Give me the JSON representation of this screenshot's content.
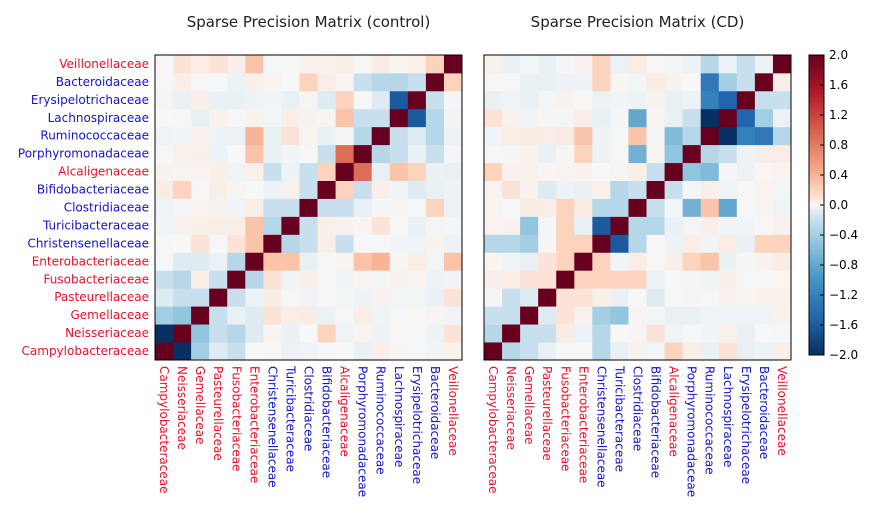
{
  "chart_data": [
    {
      "type": "heatmap",
      "title": "Sparse Precision Matrix (control)",
      "labels": [
        "Campylobacteraceae",
        "Neisseriaceae",
        "Gemellaceae",
        "Pasteurellaceae",
        "Fusobacteriaceae",
        "Enterobacteriaceae",
        "Christensenellaceae",
        "Turicibacteraceae",
        "Clostridiaceae",
        "Bifidobacteriaceae",
        "Alcaligenaceae",
        "Porphyromonadaceae",
        "Ruminococcaceae",
        "Lachnospiraceae",
        "Erysipelotrichaceae",
        "Bacteroidaceae",
        "Veillonellaceae"
      ],
      "label_colors": [
        "#e8102a",
        "#e8102a",
        "#e8102a",
        "#e8102a",
        "#e8102a",
        "#e8102a",
        "#1414c8",
        "#1414c8",
        "#1414c8",
        "#1414c8",
        "#e8102a",
        "#1414c8",
        "#1414c8",
        "#1414c8",
        "#1414c8",
        "#1414c8",
        "#e8102a"
      ],
      "row_order": "bottom-to-top",
      "diagonal": 2.0,
      "entries": [
        [
          0,
          1,
          -2.0
        ],
        [
          0,
          2,
          -0.4
        ],
        [
          0,
          3,
          -0.1
        ],
        [
          0,
          4,
          -0.2
        ],
        [
          1,
          2,
          -0.5
        ],
        [
          1,
          3,
          -0.2
        ],
        [
          1,
          4,
          -0.3
        ],
        [
          1,
          9,
          0.2
        ],
        [
          2,
          3,
          -0.2
        ],
        [
          2,
          5,
          -0.1
        ],
        [
          3,
          4,
          -0.2
        ],
        [
          4,
          5,
          -0.3
        ],
        [
          4,
          6,
          0.1
        ],
        [
          5,
          6,
          0.3
        ],
        [
          5,
          7,
          0.3
        ],
        [
          5,
          11,
          0.3
        ],
        [
          5,
          12,
          0.4
        ],
        [
          5,
          16,
          0.2
        ],
        [
          6,
          7,
          -0.3
        ],
        [
          6,
          8,
          -0.2
        ],
        [
          6,
          10,
          -0.2
        ],
        [
          7,
          8,
          -0.2
        ],
        [
          7,
          12,
          0.1
        ],
        [
          8,
          9,
          -0.2
        ],
        [
          8,
          10,
          -0.2
        ],
        [
          8,
          15,
          0.2
        ],
        [
          9,
          10,
          0.2
        ],
        [
          9,
          11,
          -0.2
        ],
        [
          10,
          11,
          0.9
        ],
        [
          10,
          13,
          0.3
        ],
        [
          10,
          14,
          0.2
        ],
        [
          11,
          12,
          -0.3
        ],
        [
          11,
          13,
          -0.2
        ],
        [
          11,
          15,
          -0.2
        ],
        [
          12,
          13,
          -0.2
        ],
        [
          12,
          15,
          -0.3
        ],
        [
          13,
          14,
          -1.6
        ],
        [
          13,
          15,
          -0.3
        ],
        [
          14,
          15,
          -0.2
        ],
        [
          15,
          16,
          0.2
        ],
        [
          16,
          1,
          0.1
        ],
        [
          16,
          5,
          0.3
        ],
        [
          16,
          3,
          0.1
        ],
        [
          12,
          14,
          -0.1
        ],
        [
          9,
          14,
          -0.1
        ],
        [
          2,
          6,
          0.1
        ],
        [
          1,
          5,
          -0.1
        ]
      ],
      "colorbar": {
        "min": -2.0,
        "max": 2.0,
        "ticks": [
          "2.0",
          "1.6",
          "1.2",
          "0.8",
          "0.4",
          "0.0",
          "−0.4",
          "−0.8",
          "−1.2",
          "−1.6",
          "−2.0"
        ]
      }
    },
    {
      "type": "heatmap",
      "title": "Sparse Precision Matrix (CD)",
      "labels": [
        "Campylobacteraceae",
        "Neisseriaceae",
        "Gemellaceae",
        "Pasteurellaceae",
        "Fusobacteriaceae",
        "Enterobacteriaceae",
        "Christensenellaceae",
        "Turicibacteraceae",
        "Clostridiaceae",
        "Bifidobacteriaceae",
        "Alcaligenaceae",
        "Porphyromonadaceae",
        "Ruminococcaceae",
        "Lachnospiraceae",
        "Erysipelotrichaceae",
        "Bacteroidaceae",
        "Veillonellaceae"
      ],
      "label_colors": [
        "#e8102a",
        "#e8102a",
        "#e8102a",
        "#e8102a",
        "#e8102a",
        "#e8102a",
        "#1414c8",
        "#1414c8",
        "#1414c8",
        "#1414c8",
        "#e8102a",
        "#1414c8",
        "#1414c8",
        "#1414c8",
        "#1414c8",
        "#1414c8",
        "#e8102a"
      ],
      "row_order": "bottom-to-top",
      "diagonal": 2.0,
      "entries": [
        [
          0,
          1,
          -0.3
        ],
        [
          0,
          2,
          -0.2
        ],
        [
          0,
          10,
          0.2
        ],
        [
          1,
          2,
          -0.2
        ],
        [
          1,
          3,
          -0.2
        ],
        [
          2,
          3,
          -0.1
        ],
        [
          2,
          7,
          -0.5
        ],
        [
          3,
          4,
          0.1
        ],
        [
          3,
          5,
          0.1
        ],
        [
          4,
          5,
          0.2
        ],
        [
          4,
          6,
          0.2
        ],
        [
          4,
          7,
          0.2
        ],
        [
          4,
          8,
          0.2
        ],
        [
          5,
          6,
          0.2
        ],
        [
          5,
          12,
          0.3
        ],
        [
          6,
          7,
          -1.6
        ],
        [
          6,
          8,
          -0.3
        ],
        [
          6,
          15,
          0.2
        ],
        [
          6,
          16,
          0.2
        ],
        [
          7,
          8,
          -0.3
        ],
        [
          7,
          9,
          -0.3
        ],
        [
          8,
          9,
          -0.2
        ],
        [
          8,
          12,
          0.3
        ],
        [
          8,
          13,
          -0.8
        ],
        [
          9,
          10,
          -0.2
        ],
        [
          10,
          11,
          -0.5
        ],
        [
          10,
          12,
          -0.6
        ],
        [
          11,
          12,
          -0.3
        ],
        [
          11,
          13,
          -0.2
        ],
        [
          12,
          13,
          -2.0
        ],
        [
          12,
          14,
          -1.2
        ],
        [
          12,
          15,
          -1.3
        ],
        [
          13,
          14,
          -1.5
        ],
        [
          13,
          15,
          -0.4
        ],
        [
          14,
          15,
          -0.2
        ],
        [
          12,
          8,
          0.3
        ],
        [
          11,
          8,
          -0.7
        ],
        [
          0,
          13,
          0.1
        ],
        [
          2,
          4,
          0.1
        ],
        [
          0,
          6,
          -0.3
        ],
        [
          1,
          6,
          -0.3
        ],
        [
          2,
          6,
          -0.4
        ],
        [
          5,
          11,
          0.2
        ],
        [
          12,
          16,
          -0.3
        ],
        [
          14,
          16,
          -0.2
        ],
        [
          1,
          9,
          0.1
        ],
        [
          3,
          9,
          -0.1
        ]
      ]
    }
  ]
}
